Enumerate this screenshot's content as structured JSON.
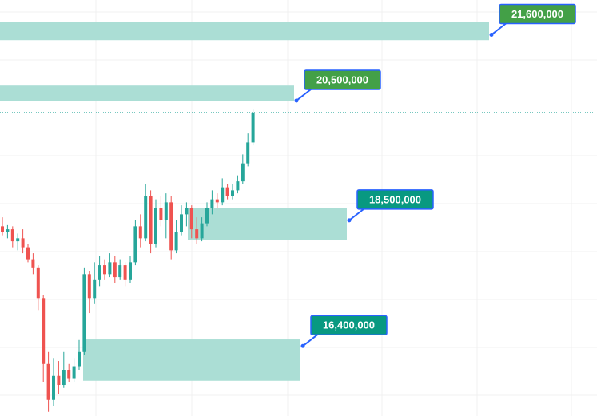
{
  "chart_data": {
    "type": "candlestick",
    "ylim": [
      15230000,
      22180000
    ],
    "up_color": "#26a69a",
    "down_color": "#ef5350",
    "open": [
      18400000,
      18300000,
      18350000,
      18150000,
      18200000,
      18050000,
      17850000,
      17700000,
      17200000,
      16100000,
      15500000,
      15900000,
      15750000,
      16000000,
      15850000,
      16050000,
      16300000,
      17600000,
      17200000,
      17500000,
      17750000,
      17600000,
      17800000,
      17550000,
      17750000,
      17500000,
      17800000,
      18400000,
      18200000,
      18900000,
      18100000,
      18700000,
      18500000,
      18800000,
      18000000,
      18300000,
      18600000,
      18700000,
      18350000,
      18200000,
      18450000,
      18700000,
      18850000,
      18800000,
      19050000,
      18900000,
      19000000,
      19150000,
      19450000,
      19800000
    ],
    "high": [
      18550000,
      18420000,
      18400000,
      18280000,
      18350000,
      18100000,
      17950000,
      17750000,
      17250000,
      16300000,
      16200000,
      16150000,
      16300000,
      16100000,
      16200000,
      16500000,
      17700000,
      17650000,
      17800000,
      17900000,
      17850000,
      17950000,
      17900000,
      17850000,
      17800000,
      17900000,
      18500000,
      18600000,
      19100000,
      19000000,
      18850000,
      18900000,
      18950000,
      18900000,
      18500000,
      18750000,
      18800000,
      18750000,
      18550000,
      18550000,
      18800000,
      19000000,
      18950000,
      19200000,
      19100000,
      19100000,
      19250000,
      19600000,
      19950000,
      20350000
    ],
    "low": [
      18250000,
      18200000,
      18050000,
      18000000,
      17950000,
      17800000,
      17600000,
      17000000,
      15800000,
      15300000,
      15400000,
      15600000,
      15700000,
      15800000,
      15800000,
      16000000,
      16250000,
      16950000,
      17100000,
      17400000,
      17500000,
      17550000,
      17450000,
      17500000,
      17400000,
      17450000,
      17750000,
      18050000,
      18150000,
      17950000,
      18050000,
      18400000,
      18200000,
      17850000,
      17950000,
      18250000,
      18400000,
      18200000,
      18100000,
      18150000,
      18400000,
      18600000,
      18700000,
      18750000,
      18850000,
      18850000,
      18950000,
      19100000,
      19400000,
      19750000
    ],
    "close": [
      18300000,
      18350000,
      18150000,
      18200000,
      18050000,
      17850000,
      17700000,
      17200000,
      16100000,
      15500000,
      15900000,
      15750000,
      16000000,
      15850000,
      16050000,
      16300000,
      17600000,
      17200000,
      17500000,
      17750000,
      17600000,
      17800000,
      17550000,
      17750000,
      17500000,
      17800000,
      18400000,
      18200000,
      18900000,
      18100000,
      18700000,
      18500000,
      18800000,
      18000000,
      18300000,
      18600000,
      18700000,
      18350000,
      18200000,
      18450000,
      18700000,
      18850000,
      18800000,
      19050000,
      18900000,
      19000000,
      19150000,
      19450000,
      19800000,
      20300000
    ],
    "zones": [
      {
        "label": "21,600,000",
        "value": 21600000,
        "top": 21810000,
        "bottom": 21510000,
        "color": "#43a047"
      },
      {
        "label": "20,500,000",
        "value": 20500000,
        "top": 20750000,
        "bottom": 20490000,
        "color": "#43a047"
      },
      {
        "label": "18,500,000",
        "value": 18500000,
        "top": 18710000,
        "bottom": 18170000,
        "color": "#089981"
      },
      {
        "label": "16,400,000",
        "value": 16400000,
        "top": 16510000,
        "bottom": 15820000,
        "color": "#089981"
      }
    ]
  }
}
